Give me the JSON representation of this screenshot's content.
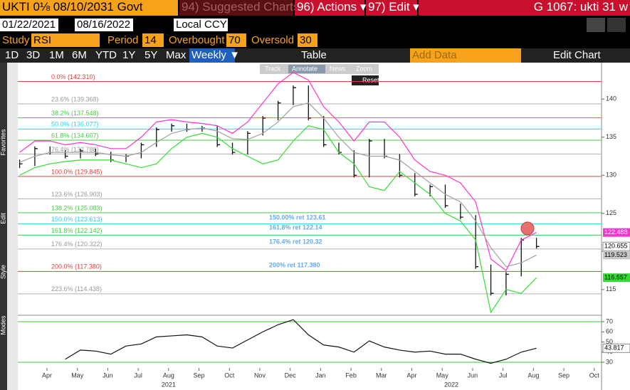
{
  "header": {
    "security": "UKTI 0⅛ 08/10/2031 Govt",
    "menu": [
      "94) Suggested Charts",
      "96) Actions ▾",
      "97) Edit ▾"
    ],
    "ticker": "G 1067: ukti 31 w"
  },
  "range": {
    "start": "01/22/2021",
    "end": "08/16/2022",
    "currency": "Local CCY"
  },
  "study": {
    "label": "Study",
    "name": "RSI",
    "period_label": "Period",
    "period": 14,
    "overbought_label": "Overbought",
    "overbought": 70,
    "oversold_label": "Oversold",
    "oversold": 30
  },
  "toolbar": {
    "periods": [
      "1D",
      "3D",
      "1M",
      "6M",
      "YTD",
      "1Y",
      "5Y",
      "Max"
    ],
    "frequency": "Weekly ▼",
    "table": "Table",
    "add_data": "Add Data",
    "edit_chart": "Edit Chart"
  },
  "chart_tools": [
    "Track",
    "Annotate",
    "News",
    "Zoom"
  ],
  "reset": "Reset",
  "side_tabs": [
    "Favorites",
    "Edit",
    "Style",
    "Modes"
  ],
  "chart_data": [
    {
      "type": "line",
      "x": [
        -0.9,
        -0.4,
        0.1,
        0.6,
        1.1,
        1.6,
        2.1,
        2.6,
        3.1,
        3.6,
        4.1,
        4.6,
        5.1,
        5.6,
        6.1,
        6.6,
        7.1,
        7.6,
        8.1,
        8.6,
        9.1,
        9.6,
        10.1,
        10.6,
        11.1,
        11.6,
        12.1,
        12.6,
        13.1,
        13.6,
        14.1,
        14.6,
        15.1,
        15.6,
        16.1
      ],
      "series": [
        {
          "style": "bars",
          "color": "#111111",
          "values": [
            131.5,
            133.5,
            133.0,
            132.5,
            133.2,
            132.8,
            132.0,
            132.5,
            134.0,
            136.0,
            136.5,
            136.0,
            136.2,
            134.0,
            133.0,
            135.5,
            137.5,
            139.5,
            141.5,
            137.5,
            134.0,
            133.0,
            130.0,
            134.5,
            132.5,
            130.0,
            127.5,
            128.5,
            126.0,
            124.5,
            118.0,
            114.5,
            117.0,
            121.5,
            120.655
          ]
        },
        {
          "style": "line",
          "color": "#ff33cc",
          "label_bg": "#ff33cc",
          "values": [
            133,
            134.5,
            134.5,
            134,
            134.3,
            134,
            133.5,
            133.5,
            135,
            137,
            137.3,
            137,
            136.8,
            136.5,
            135.5,
            137,
            139.5,
            142,
            143.5,
            142.5,
            139,
            137,
            134.5,
            137,
            137,
            135,
            132,
            130.5,
            130,
            129,
            126.5,
            119,
            117.5,
            121.5,
            122.488
          ]
        },
        {
          "style": "line",
          "color": "#a0a0a0",
          "label_bg": "#c8c8c8",
          "values": [
            131.7,
            132.5,
            133,
            133,
            133,
            133,
            132.7,
            132.5,
            133,
            134.3,
            135.5,
            136,
            136.2,
            135.8,
            134.8,
            134.7,
            135.5,
            137,
            139,
            139.5,
            137.5,
            135,
            133,
            132.5,
            132.5,
            132,
            130.5,
            129,
            127.5,
            126.5,
            124,
            120.5,
            118,
            118.5,
            119.523
          ]
        },
        {
          "style": "line",
          "color": "#33dd33",
          "label_bg": "#33dd33",
          "values": [
            130,
            131,
            131.5,
            131.8,
            132,
            132,
            132,
            131.5,
            131,
            131.5,
            133.5,
            135,
            135.5,
            135,
            133.5,
            132.5,
            131.5,
            132,
            134.5,
            136.5,
            136,
            133,
            131.5,
            128.5,
            128,
            130.5,
            129,
            127.5,
            125,
            124,
            121.5,
            112,
            115,
            114.5,
            116.557
          ]
        }
      ],
      "xlim": [
        -0.96,
        18.24
      ],
      "xticks": [
        {
          "value": 0,
          "label": "Apr"
        },
        {
          "value": 1,
          "label": "May"
        },
        {
          "value": 2,
          "label": "Jun"
        },
        {
          "value": 3,
          "label": "Jul"
        },
        {
          "value": 4,
          "label": "Aug"
        },
        {
          "value": 5,
          "label": "Sep"
        },
        {
          "value": 6,
          "label": "Oct"
        },
        {
          "value": 7,
          "label": "Nov"
        },
        {
          "value": 8,
          "label": "Dec"
        },
        {
          "value": 9,
          "label": "Jan"
        },
        {
          "value": 10,
          "label": "Feb"
        },
        {
          "value": 11,
          "label": "Mar"
        },
        {
          "value": 12,
          "label": "Apr"
        },
        {
          "value": 13,
          "label": "May"
        },
        {
          "value": 14,
          "label": "Jun"
        },
        {
          "value": 15,
          "label": "Jul"
        },
        {
          "value": 16,
          "label": "Aug"
        },
        {
          "value": 17,
          "label": "Sep"
        },
        {
          "value": 18,
          "label": "Oct"
        }
      ],
      "years": [
        {
          "value": 4,
          "label": "2021"
        },
        {
          "value": 13.3,
          "label": "2022"
        }
      ],
      "ylim": [
        111.9,
        144.6
      ],
      "yticks": [
        115,
        120,
        125,
        130,
        135,
        140
      ],
      "levels": [
        {
          "value": 142.31,
          "label": "0.0% (142.310)",
          "color": "#e04040"
        },
        {
          "value": 139.368,
          "label": "23.6% (139.368)",
          "color": "#b0b0b0"
        },
        {
          "value": 137.548,
          "label": "38.2% (137.548)",
          "color": "#44cc44"
        },
        {
          "value": 136.077,
          "label": "50.0% (136.077)",
          "color": "#33ccee"
        },
        {
          "value": 134.607,
          "label": "61.8% (134.607)",
          "color": "#44cc44"
        },
        {
          "value": 132.788,
          "label": "76.4% (132.788)",
          "color": "#b0b0b0"
        },
        {
          "value": 129.845,
          "label": "100.0% (129.845)",
          "color": "#e04040"
        },
        {
          "value": 126.903,
          "label": "123.6% (126.903)",
          "color": "#b0b0b0"
        },
        {
          "value": 125.083,
          "label": "138.2% (125.083)",
          "color": "#44cc44"
        },
        {
          "value": 123.613,
          "label": "150.0% (123.613)",
          "color": "#33ccee"
        },
        {
          "value": 122.142,
          "label": "161.8% (122.142)",
          "color": "#44cc44"
        },
        {
          "value": 120.322,
          "label": "176.4% (120.322)",
          "color": "#b0b0b0"
        },
        {
          "value": 117.38,
          "label": "200.0% (117.380)",
          "color": "#e04040"
        },
        {
          "value": 114.438,
          "label": "223.6% (114.438)",
          "color": "#b0b0b0"
        }
      ],
      "annotations": [
        "150.00% ret 123.61",
        "161.8% ret 122.14",
        "176.4% ret  120.32",
        "200% ret 117.380"
      ]
    },
    {
      "type": "line",
      "x": [
        -0.9,
        -0.4,
        0.1,
        0.6,
        1.1,
        1.6,
        2.1,
        2.6,
        3.1,
        3.6,
        4.1,
        4.6,
        5.1,
        5.6,
        6.1,
        6.6,
        7.1,
        7.6,
        8.1,
        8.6,
        9.1,
        9.6,
        10.1,
        10.6,
        11.1,
        11.6,
        12.1,
        12.6,
        13.1,
        13.6,
        14.1,
        14.6,
        15.1,
        15.6,
        16.1
      ],
      "series": [
        {
          "color": "#111111",
          "values": [
            null,
            null,
            null,
            33,
            42,
            41,
            38,
            46,
            48,
            55,
            56,
            57,
            55,
            46,
            44,
            52,
            60,
            67,
            72,
            57,
            47,
            45,
            40,
            51,
            45,
            42,
            40,
            41,
            38,
            38,
            33,
            29,
            33,
            40,
            43.817
          ]
        }
      ],
      "xlim": [
        -0.96,
        18.24
      ],
      "ylim": [
        24.4,
        73.5
      ],
      "yticks": [
        30,
        40,
        50,
        60,
        70
      ]
    }
  ]
}
